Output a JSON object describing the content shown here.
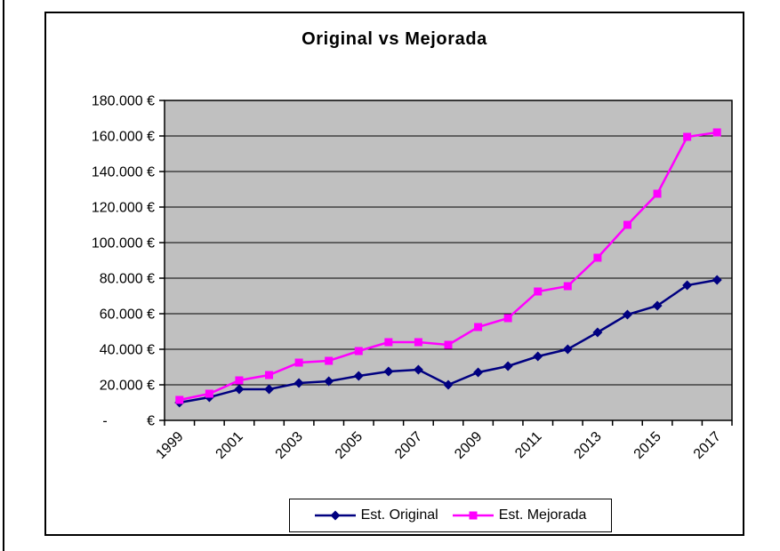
{
  "page": {
    "kind": "excel-style-chart"
  },
  "chart_data": {
    "type": "line",
    "title": "Original vs Mejorada",
    "categories": [
      1999,
      2000,
      2001,
      2002,
      2003,
      2004,
      2005,
      2006,
      2007,
      2008,
      2009,
      2010,
      2011,
      2012,
      2013,
      2014,
      2015,
      2016,
      2017
    ],
    "x_label_step": 2,
    "series": [
      {
        "name": "Est. Original",
        "color": "#000080",
        "marker": "diamond",
        "values": [
          10000,
          13000,
          17500,
          17500,
          21000,
          22000,
          25000,
          27500,
          28500,
          20000,
          27000,
          30500,
          36000,
          40000,
          49500,
          59500,
          64500,
          76000,
          79000
        ]
      },
      {
        "name": "Est. Mejorada",
        "color": "#FF00FF",
        "marker": "square",
        "values": [
          11500,
          15000,
          22500,
          25500,
          32500,
          33500,
          39000,
          44000,
          44000,
          42500,
          52500,
          57500,
          72500,
          75500,
          91500,
          110000,
          127500,
          159500,
          162000
        ]
      }
    ],
    "y_axis": {
      "min": 0,
      "max": 180000,
      "step": 20000,
      "tick_labels": [
        "-          €",
        "20.000 €",
        "40.000 €",
        "60.000 €",
        "80.000 €",
        "100.000 €",
        "120.000 €",
        "140.000 €",
        "160.000 €",
        "180.000 €"
      ]
    },
    "legend": {
      "position": "bottom",
      "entries": [
        "Est. Original",
        "Est. Mejorada"
      ]
    },
    "colors": {
      "plot_bg": "#C0C0C0",
      "axis": "#000000",
      "text": "#000000"
    },
    "grid": true
  }
}
